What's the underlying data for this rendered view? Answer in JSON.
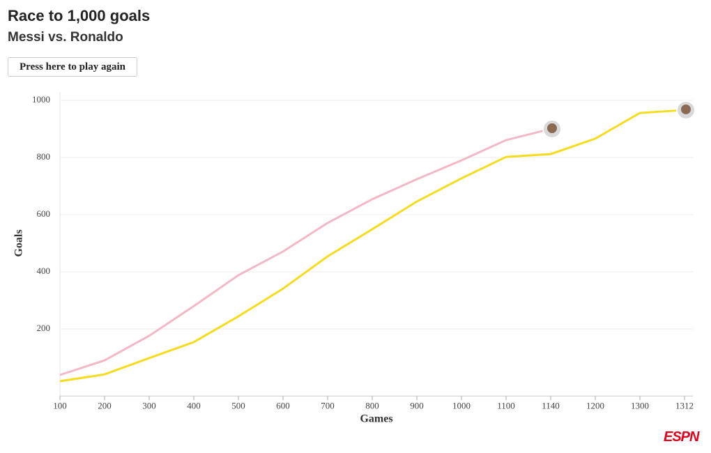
{
  "chart_data": {
    "type": "line",
    "title": "Race to 1,000 goals",
    "subtitle": "Messi vs. Ronaldo",
    "button": "Press here to play again",
    "xlabel": "Games",
    "ylabel": "Goals",
    "logo": "ESPN",
    "categories": [
      "100",
      "200",
      "300",
      "400",
      "500",
      "600",
      "700",
      "800",
      "900",
      "1000",
      "1100",
      "1140",
      "1200",
      "1300",
      "1312"
    ],
    "series": [
      {
        "color": "#f2b8c6",
        "values": [
          39,
          90,
          176,
          280,
          388,
          471,
          571,
          654,
          724,
          790,
          861,
          900,
          null,
          null,
          null
        ]
      },
      {
        "color": "#f5dc1e",
        "values": [
          17,
          41,
          98,
          154,
          244,
          341,
          454,
          549,
          646,
          727,
          802,
          812,
          866,
          956,
          966
        ]
      }
    ],
    "ylim": [
      -30,
      1030
    ],
    "yticks": [
      200,
      400,
      600,
      800,
      1000
    ],
    "grid": true
  }
}
